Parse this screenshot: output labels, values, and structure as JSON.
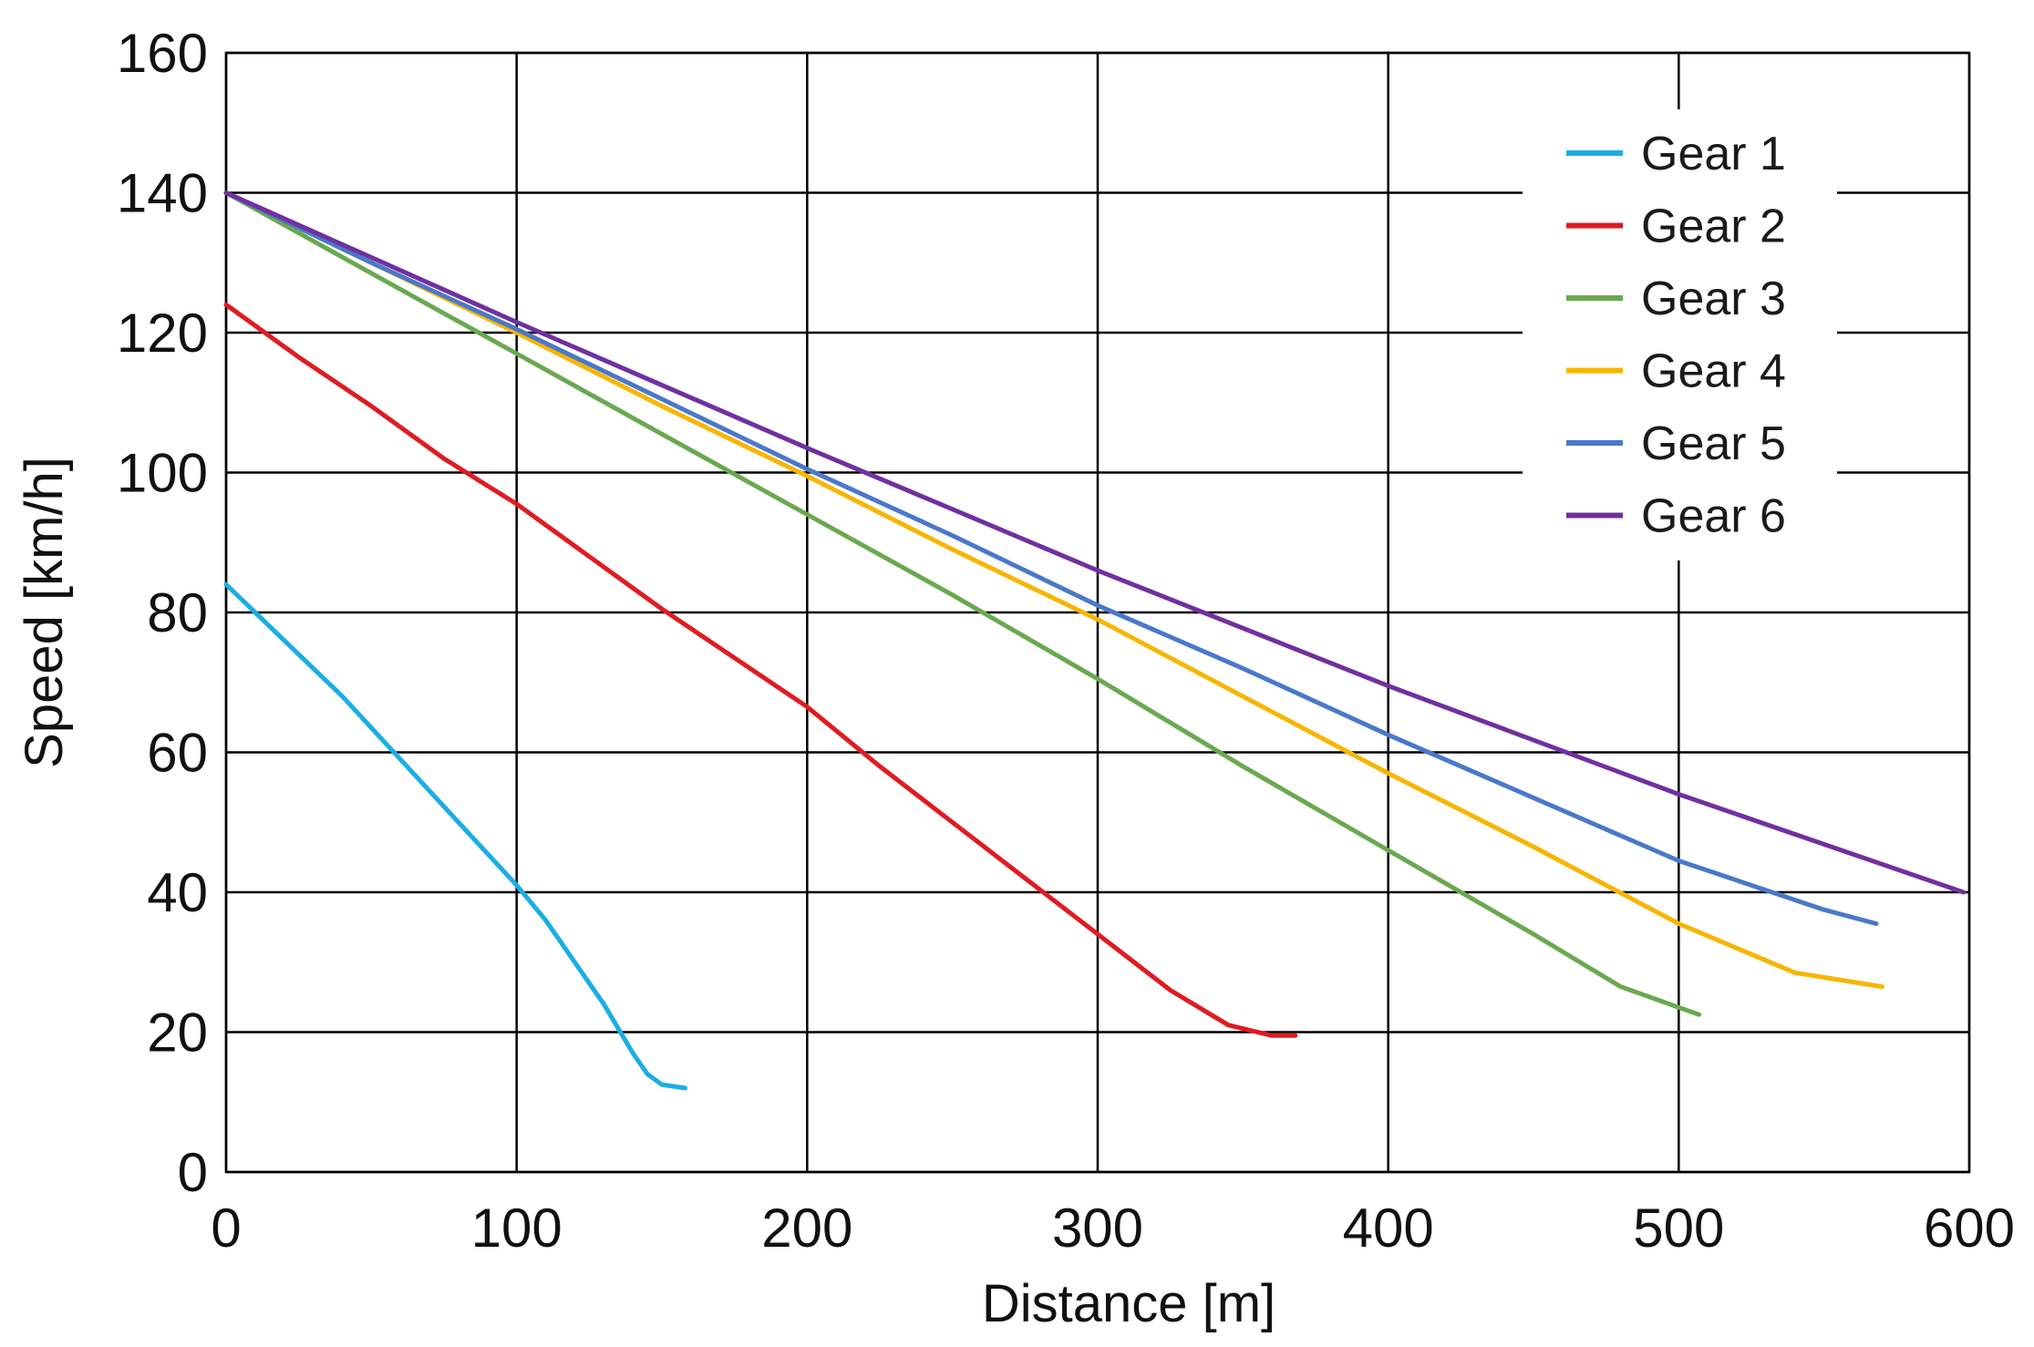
{
  "chart_data": {
    "type": "line",
    "title": "",
    "xlabel": "Distance [m]",
    "ylabel": "Speed [km/h]",
    "xlim": [
      0,
      600
    ],
    "ylim": [
      0,
      160
    ],
    "xticks": [
      "0",
      "100",
      "200",
      "300",
      "400",
      "500",
      "600"
    ],
    "yticks": [
      "0",
      "20",
      "40",
      "60",
      "80",
      "100",
      "120",
      "140",
      "160"
    ],
    "grid": true,
    "legend_position": "top-right",
    "series": [
      {
        "name": "Gear 1",
        "color": "#1aaee3",
        "x": [
          0,
          20,
          40,
          60,
          80,
          100,
          110,
          120,
          130,
          140,
          145,
          150,
          158
        ],
        "y": [
          84,
          76,
          68,
          59,
          50,
          41,
          36,
          30,
          24,
          17,
          14,
          12.5,
          12
        ]
      },
      {
        "name": "Gear 2",
        "color": "#e01b22",
        "x": [
          0,
          25,
          50,
          75,
          100,
          125,
          150,
          175,
          200,
          225,
          250,
          275,
          300,
          325,
          345,
          360,
          368
        ],
        "y": [
          124,
          116.5,
          109.5,
          102,
          95.5,
          88,
          80.5,
          73.5,
          66.5,
          58,
          50,
          42,
          34,
          26,
          21,
          19.5,
          19.5
        ]
      },
      {
        "name": "Gear 3",
        "color": "#6aa84f",
        "x": [
          0,
          50,
          100,
          150,
          200,
          250,
          300,
          350,
          400,
          450,
          480,
          507
        ],
        "y": [
          140,
          128.5,
          117,
          105.5,
          94,
          82.5,
          70.5,
          58,
          46,
          34,
          26.5,
          22.5
        ]
      },
      {
        "name": "Gear 4",
        "color": "#f7b500",
        "x": [
          0,
          50,
          100,
          150,
          200,
          250,
          300,
          350,
          400,
          450,
          500,
          540,
          570
        ],
        "y": [
          140,
          130,
          120,
          109.5,
          99.5,
          89,
          79,
          68,
          57,
          46.5,
          35.5,
          28.5,
          26.5
        ]
      },
      {
        "name": "Gear 5",
        "color": "#4a78c9",
        "x": [
          0,
          50,
          100,
          150,
          200,
          250,
          300,
          350,
          400,
          450,
          500,
          550,
          568
        ],
        "y": [
          140,
          130,
          120.5,
          110.5,
          100.5,
          91,
          81,
          72,
          62.5,
          53.5,
          44.5,
          37.5,
          35.5
        ]
      },
      {
        "name": "Gear 6",
        "color": "#7030a0",
        "x": [
          0,
          100,
          200,
          300,
          400,
          500,
          598
        ],
        "y": [
          140,
          121.5,
          103.5,
          86,
          69.5,
          54,
          40
        ]
      }
    ]
  }
}
